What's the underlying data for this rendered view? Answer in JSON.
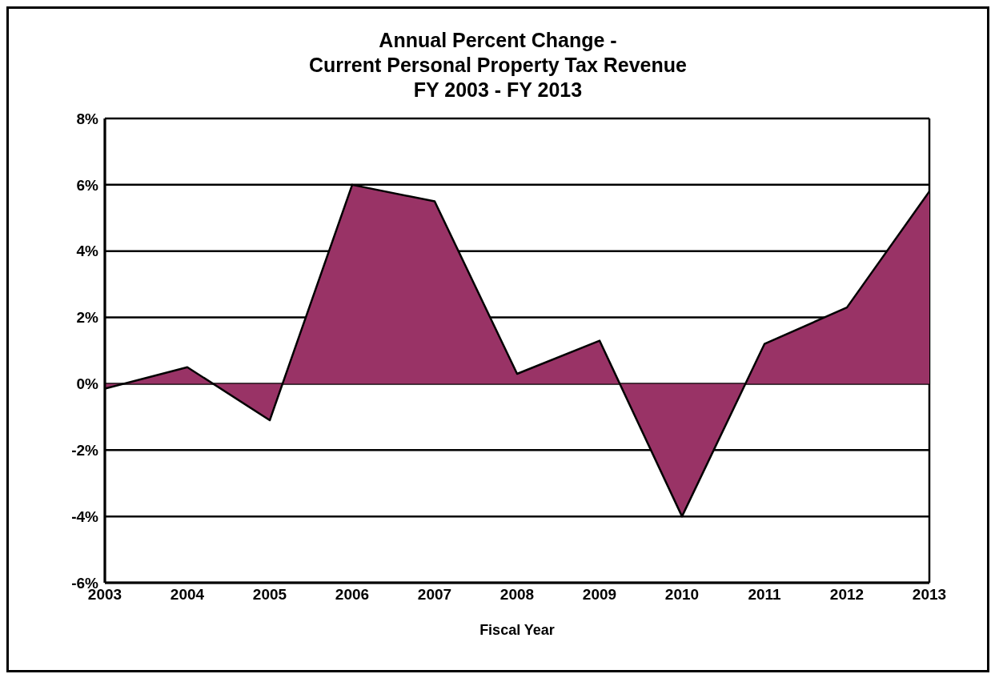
{
  "chart_data": {
    "type": "area",
    "title": "Annual Percent Change -\nCurrent Personal Property Tax Revenue\nFY 2003 - FY 2013",
    "xlabel": "Fiscal Year",
    "x": [
      2003,
      2004,
      2005,
      2006,
      2007,
      2008,
      2009,
      2010,
      2011,
      2012,
      2013
    ],
    "series": [
      {
        "color": "#993366",
        "values": [
          -0.15,
          0.5,
          -1.1,
          6.0,
          5.5,
          0.3,
          1.3,
          -4.0,
          1.2,
          2.3,
          5.8
        ]
      }
    ],
    "xlim": [
      2003,
      2013
    ],
    "xticks": [
      2003,
      2004,
      2005,
      2006,
      2007,
      2008,
      2009,
      2010,
      2011,
      2012,
      2013
    ],
    "ylim": [
      -6,
      8
    ],
    "yticks": [
      {
        "value": -6,
        "label": "-6%"
      },
      {
        "value": -4,
        "label": "-4%"
      },
      {
        "value": -2,
        "label": "-2%"
      },
      {
        "value": 0,
        "label": "0%"
      },
      {
        "value": 2,
        "label": "2%"
      },
      {
        "value": 4,
        "label": "4%"
      },
      {
        "value": 6,
        "label": "6%"
      },
      {
        "value": 8,
        "label": "8%"
      }
    ],
    "grid": "y",
    "legend": false
  }
}
